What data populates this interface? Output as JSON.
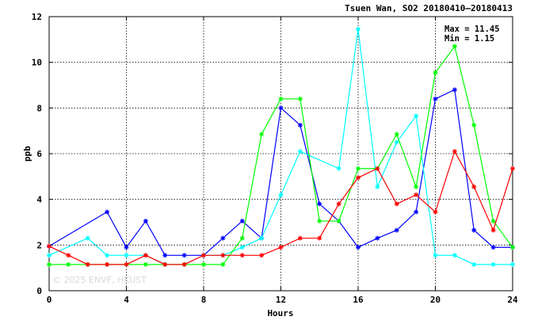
{
  "chart_data": {
    "type": "line",
    "title": "Tsuen Wan, SO2 20180410—20180413",
    "xlabel": "Hours",
    "ylabel": "ppb",
    "xlim": [
      0,
      24
    ],
    "ylim": [
      0,
      12
    ],
    "xticks": [
      0,
      4,
      8,
      12,
      16,
      20,
      24
    ],
    "yticks": [
      0,
      2,
      4,
      6,
      8,
      10,
      12
    ],
    "grid": true,
    "stats": {
      "max_label": "Max = 11.45",
      "min_label": "Min =  1.15"
    },
    "watermark": "© 2025 ENVF, HKUST",
    "series": [
      {
        "color": "#0000ff",
        "x": [
          0,
          3,
          4,
          5,
          6,
          7,
          8,
          9,
          10,
          11,
          12,
          13,
          14,
          15,
          16,
          17,
          18,
          19,
          20,
          21,
          22,
          23,
          24
        ],
        "y": [
          1.95,
          3.45,
          1.9,
          3.05,
          1.55,
          1.55,
          1.55,
          2.3,
          3.05,
          2.3,
          8.0,
          7.25,
          3.8,
          3.05,
          1.9,
          2.3,
          2.65,
          3.45,
          8.4,
          8.8,
          2.65,
          1.9,
          1.9
        ]
      },
      {
        "color": "#00ffff",
        "x": [
          0,
          2,
          3,
          4,
          5,
          6,
          7,
          8,
          9,
          10,
          11,
          12,
          13,
          15,
          16,
          17,
          18,
          19,
          20,
          21,
          22,
          23,
          24
        ],
        "y": [
          1.55,
          2.3,
          1.55,
          1.55,
          1.55,
          1.15,
          1.15,
          1.55,
          1.55,
          1.9,
          2.3,
          4.2,
          6.1,
          5.35,
          11.45,
          4.55,
          6.5,
          7.65,
          1.55,
          1.55,
          1.15,
          1.15,
          1.15
        ]
      },
      {
        "color": "#00ff00",
        "x": [
          0,
          1,
          2,
          3,
          4,
          5,
          6,
          7,
          8,
          9,
          10,
          11,
          12,
          13,
          14,
          15,
          16,
          17,
          18,
          19,
          20,
          21,
          22,
          23,
          24
        ],
        "y": [
          1.15,
          1.15,
          1.15,
          1.15,
          1.15,
          1.15,
          1.15,
          1.15,
          1.15,
          1.15,
          2.3,
          6.85,
          8.4,
          8.4,
          3.05,
          3.05,
          5.35,
          5.35,
          6.85,
          4.55,
          9.55,
          10.7,
          7.25,
          3.05,
          1.9
        ]
      },
      {
        "color": "#ff0000",
        "x": [
          0,
          1,
          2,
          3,
          4,
          5,
          6,
          7,
          8,
          9,
          10,
          11,
          12,
          13,
          14,
          15,
          16,
          17,
          18,
          19,
          20,
          21,
          22,
          23,
          24
        ],
        "y": [
          1.95,
          1.55,
          1.15,
          1.15,
          1.15,
          1.55,
          1.15,
          1.15,
          1.55,
          1.55,
          1.55,
          1.55,
          1.9,
          2.3,
          2.3,
          3.8,
          4.95,
          5.35,
          3.8,
          4.2,
          3.45,
          6.1,
          4.55,
          2.65,
          5.35
        ]
      }
    ]
  }
}
